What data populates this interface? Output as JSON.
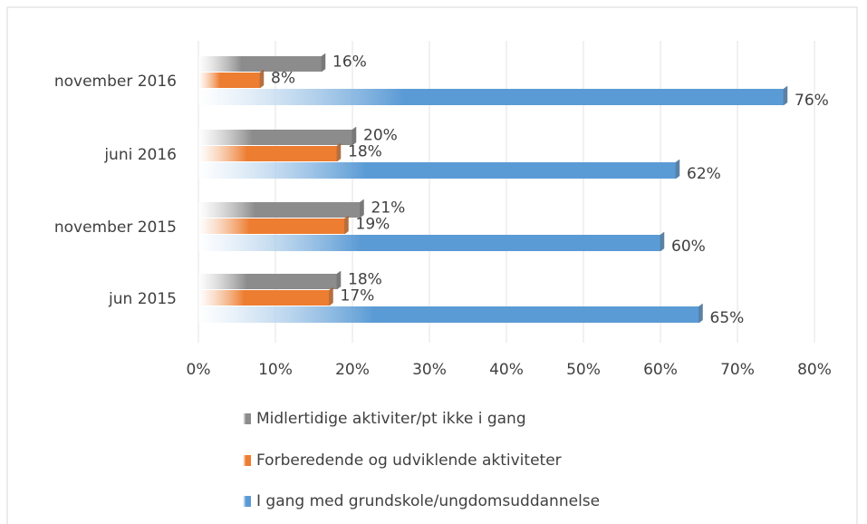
{
  "chart_data": {
    "type": "bar",
    "orientation": "horizontal",
    "categories": [
      "november 2016",
      "juni 2016",
      "november 2015",
      "jun 2015"
    ],
    "series": [
      {
        "name": "Midlertidige aktiviter/pt ikke i gang",
        "color": "#8c8c8c",
        "values": [
          16,
          20,
          21,
          18
        ],
        "value_labels": [
          "16%",
          "20%",
          "21%",
          "18%"
        ]
      },
      {
        "name": "Forberedende og udviklende aktiviteter",
        "color": "#ed7d31",
        "values": [
          8,
          18,
          19,
          17
        ],
        "value_labels": [
          "8%",
          "18%",
          "19%",
          "17%"
        ]
      },
      {
        "name": "I gang med grundskole/ungdomsuddannelse",
        "color": "#5b9bd5",
        "values": [
          76,
          62,
          60,
          65
        ],
        "value_labels": [
          "76%",
          "62%",
          "60%",
          "65%"
        ]
      }
    ],
    "xlim": [
      0,
      80
    ],
    "xticks": [
      {
        "value": 0,
        "label": "0%"
      },
      {
        "value": 10,
        "label": "10%"
      },
      {
        "value": 20,
        "label": "20%"
      },
      {
        "value": 30,
        "label": "30%"
      },
      {
        "value": 40,
        "label": "40%"
      },
      {
        "value": 50,
        "label": "50%"
      },
      {
        "value": 60,
        "label": "60%"
      },
      {
        "value": 70,
        "label": "70%"
      },
      {
        "value": 80,
        "label": "80%"
      }
    ],
    "grid": true,
    "legend": "bottom"
  }
}
